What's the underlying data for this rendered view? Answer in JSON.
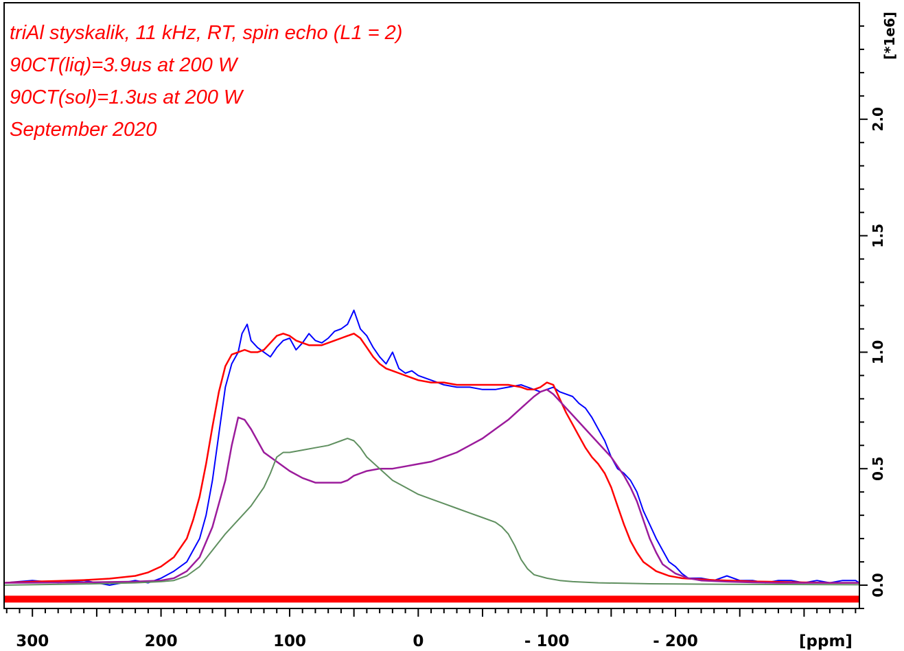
{
  "chart_data": {
    "type": "line",
    "title": "",
    "xlabel": "[ppm]",
    "ylabel": "[*1e6]",
    "x_reversed": true,
    "xlim": [
      322,
      -343
    ],
    "ylim": [
      -0.1,
      2.5
    ],
    "x_ticks": [
      300,
      200,
      100,
      0,
      -100,
      -200
    ],
    "x_tick_labels": [
      "300",
      "200",
      "100",
      "0",
      "- 100",
      "- 200"
    ],
    "y_ticks": [
      0.0,
      0.5,
      1.0,
      1.5,
      2.0
    ],
    "y_tick_labels": [
      "0.0",
      "0.5",
      "1.0",
      "1.5",
      "2.0"
    ],
    "grid": false,
    "annotations": [
      "triAl styskalik, 11 kHz, RT, spin echo (L1 = 2)",
      "90CT(liq)=3.9us at 200 W",
      "90CT(sol)=1.3us at 200 W",
      "September 2020"
    ],
    "colors": {
      "experimental": "#0000ff",
      "fit_total": "#ff0000",
      "component_1": "#9b1b9b",
      "component_2": "#5f8f5f",
      "baseline": "#ff0000",
      "annotation": "#ff0000"
    },
    "series": [
      {
        "x": [
          322,
          300,
          280,
          260,
          240,
          220,
          210,
          200,
          190,
          180,
          175,
          170,
          165,
          160,
          155,
          150,
          145,
          140,
          137,
          133,
          130,
          125,
          120,
          115,
          110,
          105,
          100,
          95,
          90,
          85,
          80,
          75,
          70,
          65,
          60,
          55,
          50,
          45,
          40,
          35,
          30,
          25,
          20,
          15,
          10,
          5,
          0,
          -10,
          -20,
          -30,
          -40,
          -50,
          -60,
          -70,
          -80,
          -90,
          -95,
          -100,
          -105,
          -110,
          -115,
          -120,
          -125,
          -130,
          -135,
          -140,
          -145,
          -150,
          -155,
          -160,
          -165,
          -170,
          -175,
          -180,
          -185,
          -190,
          -195,
          -200,
          -205,
          -210,
          -220,
          -230,
          -240,
          -250,
          -260,
          -270,
          -280,
          -290,
          -300,
          -310,
          -320,
          -330,
          -340,
          -343
        ],
        "values": [
          0.01,
          0.02,
          0.01,
          0.02,
          0.0,
          0.02,
          0.01,
          0.03,
          0.06,
          0.1,
          0.15,
          0.2,
          0.3,
          0.45,
          0.65,
          0.85,
          0.95,
          1.0,
          1.08,
          1.12,
          1.05,
          1.02,
          1.0,
          0.98,
          1.02,
          1.05,
          1.06,
          1.01,
          1.04,
          1.08,
          1.05,
          1.04,
          1.06,
          1.09,
          1.1,
          1.12,
          1.18,
          1.1,
          1.07,
          1.02,
          0.98,
          0.95,
          1.0,
          0.93,
          0.91,
          0.92,
          0.9,
          0.88,
          0.86,
          0.85,
          0.85,
          0.84,
          0.84,
          0.85,
          0.86,
          0.84,
          0.83,
          0.84,
          0.85,
          0.83,
          0.82,
          0.81,
          0.78,
          0.76,
          0.72,
          0.67,
          0.62,
          0.55,
          0.5,
          0.48,
          0.45,
          0.4,
          0.32,
          0.26,
          0.2,
          0.15,
          0.1,
          0.08,
          0.05,
          0.03,
          0.03,
          0.02,
          0.04,
          0.02,
          0.02,
          0.01,
          0.02,
          0.02,
          0.01,
          0.02,
          0.01,
          0.02,
          0.02,
          0.01
        ]
      },
      {
        "x": [
          322,
          300,
          280,
          260,
          240,
          220,
          210,
          200,
          190,
          180,
          175,
          170,
          165,
          160,
          155,
          150,
          145,
          140,
          135,
          130,
          125,
          120,
          115,
          110,
          105,
          100,
          95,
          90,
          85,
          80,
          75,
          70,
          65,
          60,
          55,
          50,
          45,
          40,
          35,
          30,
          25,
          20,
          15,
          10,
          5,
          0,
          -10,
          -20,
          -30,
          -40,
          -50,
          -60,
          -70,
          -80,
          -85,
          -90,
          -95,
          -100,
          -105,
          -110,
          -115,
          -120,
          -125,
          -130,
          -135,
          -140,
          -145,
          -150,
          -155,
          -160,
          -165,
          -170,
          -175,
          -180,
          -185,
          -190,
          -195,
          -200,
          -205,
          -210,
          -220,
          -230,
          -240,
          -250,
          -260,
          -270,
          -280,
          -290,
          -300,
          -310,
          -320,
          -330,
          -340,
          -343
        ],
        "values": [
          0.01,
          0.015,
          0.018,
          0.022,
          0.028,
          0.04,
          0.055,
          0.08,
          0.12,
          0.2,
          0.28,
          0.38,
          0.52,
          0.68,
          0.83,
          0.94,
          0.99,
          1.0,
          1.01,
          1.0,
          1.0,
          1.01,
          1.04,
          1.07,
          1.08,
          1.07,
          1.05,
          1.04,
          1.03,
          1.03,
          1.03,
          1.04,
          1.05,
          1.06,
          1.07,
          1.08,
          1.06,
          1.02,
          0.98,
          0.95,
          0.93,
          0.92,
          0.91,
          0.9,
          0.89,
          0.88,
          0.87,
          0.87,
          0.86,
          0.86,
          0.86,
          0.86,
          0.86,
          0.85,
          0.84,
          0.84,
          0.85,
          0.87,
          0.86,
          0.8,
          0.74,
          0.69,
          0.64,
          0.59,
          0.55,
          0.52,
          0.48,
          0.42,
          0.34,
          0.26,
          0.19,
          0.14,
          0.1,
          0.08,
          0.06,
          0.05,
          0.04,
          0.035,
          0.03,
          0.028,
          0.025,
          0.022,
          0.02,
          0.018,
          0.016,
          0.015,
          0.014,
          0.013,
          0.012,
          0.011,
          0.01,
          0.01,
          0.01,
          0.01
        ]
      },
      {
        "x": [
          322,
          260,
          220,
          200,
          190,
          180,
          170,
          160,
          150,
          145,
          140,
          135,
          130,
          125,
          120,
          110,
          100,
          90,
          80,
          70,
          60,
          55,
          50,
          45,
          40,
          30,
          20,
          10,
          0,
          -10,
          -20,
          -30,
          -40,
          -50,
          -60,
          -70,
          -80,
          -90,
          -95,
          -100,
          -105,
          -110,
          -120,
          -130,
          -140,
          -150,
          -160,
          -165,
          -170,
          -175,
          -180,
          -185,
          -190,
          -200,
          -210,
          -220,
          -240,
          -260,
          -280,
          -300,
          -343
        ],
        "values": [
          0.01,
          0.012,
          0.015,
          0.02,
          0.03,
          0.06,
          0.12,
          0.25,
          0.45,
          0.6,
          0.72,
          0.71,
          0.67,
          0.62,
          0.57,
          0.53,
          0.49,
          0.46,
          0.44,
          0.44,
          0.44,
          0.45,
          0.47,
          0.48,
          0.49,
          0.5,
          0.5,
          0.51,
          0.52,
          0.53,
          0.55,
          0.57,
          0.6,
          0.63,
          0.67,
          0.71,
          0.76,
          0.81,
          0.83,
          0.84,
          0.82,
          0.79,
          0.73,
          0.67,
          0.61,
          0.55,
          0.47,
          0.42,
          0.36,
          0.28,
          0.2,
          0.14,
          0.09,
          0.05,
          0.03,
          0.02,
          0.015,
          0.012,
          0.01,
          0.01,
          0.01
        ]
      },
      {
        "x": [
          322,
          260,
          220,
          200,
          190,
          180,
          170,
          160,
          150,
          140,
          130,
          120,
          115,
          110,
          105,
          100,
          90,
          80,
          70,
          60,
          55,
          50,
          45,
          40,
          30,
          20,
          10,
          0,
          -10,
          -20,
          -30,
          -40,
          -50,
          -60,
          -65,
          -70,
          -75,
          -80,
          -85,
          -90,
          -100,
          -110,
          -120,
          -140,
          -160,
          -180,
          -200,
          -240,
          -280,
          -343
        ],
        "values": [
          0.0,
          0.005,
          0.01,
          0.015,
          0.02,
          0.04,
          0.08,
          0.15,
          0.22,
          0.28,
          0.34,
          0.42,
          0.48,
          0.55,
          0.57,
          0.57,
          0.58,
          0.59,
          0.6,
          0.62,
          0.63,
          0.62,
          0.59,
          0.55,
          0.5,
          0.45,
          0.42,
          0.39,
          0.37,
          0.35,
          0.33,
          0.31,
          0.29,
          0.27,
          0.25,
          0.22,
          0.17,
          0.11,
          0.07,
          0.045,
          0.03,
          0.02,
          0.015,
          0.01,
          0.008,
          0.006,
          0.005,
          0.004,
          0.003,
          0.002
        ]
      }
    ],
    "baseline_value": -0.06
  }
}
